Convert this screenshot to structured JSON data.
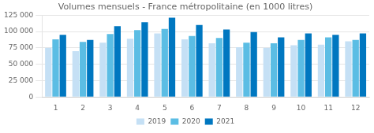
{
  "chart_data": {
    "type": "bar",
    "title": "Volumes mensuels - France métropolitaine (en 1000 litres)",
    "categories": [
      "1",
      "2",
      "3",
      "4",
      "5",
      "6",
      "7",
      "8",
      "9",
      "10",
      "11",
      "12"
    ],
    "series": [
      {
        "name": "2019",
        "color": "#c5e0f5",
        "values": [
          75000,
          70000,
          83000,
          89000,
          97000,
          88000,
          82000,
          76000,
          75000,
          79000,
          80000,
          85000
        ]
      },
      {
        "name": "2020",
        "color": "#5bbde4",
        "values": [
          88000,
          84000,
          96000,
          102000,
          104000,
          93000,
          90000,
          83000,
          82000,
          87000,
          91000,
          87000
        ]
      },
      {
        "name": "2021",
        "color": "#0077c0",
        "values": [
          95000,
          87000,
          108000,
          114000,
          121000,
          110000,
          103000,
          99000,
          91000,
          97000,
          95000,
          97000
        ]
      }
    ],
    "ylim": [
      0,
      125000
    ],
    "yticks": [
      0,
      {
        "value": 25000,
        "label": "25 000"
      },
      {
        "value": 50000,
        "label": "50 000"
      },
      {
        "value": 75000,
        "label": "75 000"
      },
      {
        "value": 100000,
        "label": "100 000"
      },
      {
        "value": 125000,
        "label": "125 000"
      }
    ],
    "grid": true,
    "legend": "bottom"
  }
}
